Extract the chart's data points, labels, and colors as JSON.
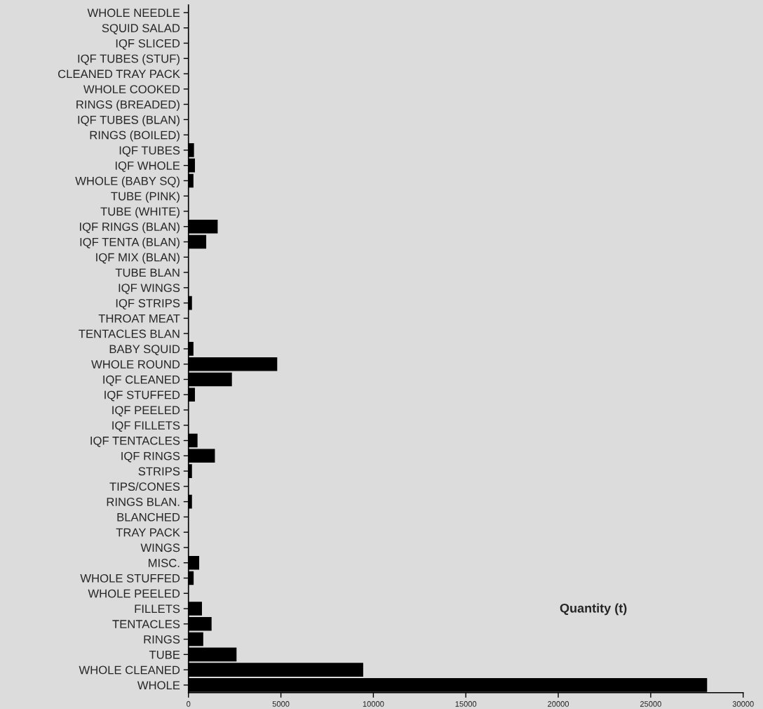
{
  "chart_data": {
    "type": "bar",
    "orientation": "horizontal",
    "xlabel": "Quantity (t)",
    "categories": [
      "WHOLE NEEDLE",
      "SQUID SALAD",
      "IQF SLICED",
      "IQF TUBES (STUF)",
      "CLEANED TRAY PACK",
      "WHOLE COOKED",
      "RINGS (BREADED)",
      "IQF TUBES (BLAN)",
      "RINGS (BOILED)",
      "IQF TUBES",
      "IQF WHOLE",
      "WHOLE (BABY SQ)",
      "TUBE (PINK)",
      "TUBE (WHITE)",
      "IQF RINGS (BLAN)",
      "IQF TENTA (BLAN)",
      "IQF MIX (BLAN)",
      "TUBE BLAN",
      "IQF WINGS",
      "IQF STRIPS",
      "THROAT MEAT",
      "TENTACLES BLAN",
      "BABY SQUID",
      "WHOLE ROUND",
      "IQF CLEANED",
      "IQF STUFFED",
      "IQF PEELED",
      "IQF FILLETS",
      "IQF TENTACLES",
      "IQF RINGS",
      "STRIPS",
      "TIPS/CONES",
      "RINGS BLAN.",
      "BLANCHED",
      "TRAY PACK",
      "WINGS",
      "MISC.",
      "WHOLE STUFFED",
      "WHOLE PEELED",
      "FILLETS",
      "TENTACLES",
      "RINGS",
      "TUBE",
      "WHOLE CLEANED",
      "WHOLE"
    ],
    "values": [
      0,
      0,
      0,
      0,
      0,
      0,
      0,
      0,
      0,
      300,
      350,
      270,
      0,
      0,
      1580,
      960,
      0,
      0,
      0,
      190,
      0,
      0,
      270,
      4800,
      2350,
      350,
      0,
      0,
      490,
      1430,
      190,
      0,
      190,
      0,
      0,
      0,
      580,
      280,
      0,
      730,
      1250,
      800,
      2600,
      9450,
      28050
    ],
    "color": "#000000",
    "xlim": [
      0,
      30000
    ],
    "xticks": [
      0,
      5000,
      10000,
      15000,
      20000,
      25000,
      30000
    ],
    "grid": false,
    "legend": false
  }
}
